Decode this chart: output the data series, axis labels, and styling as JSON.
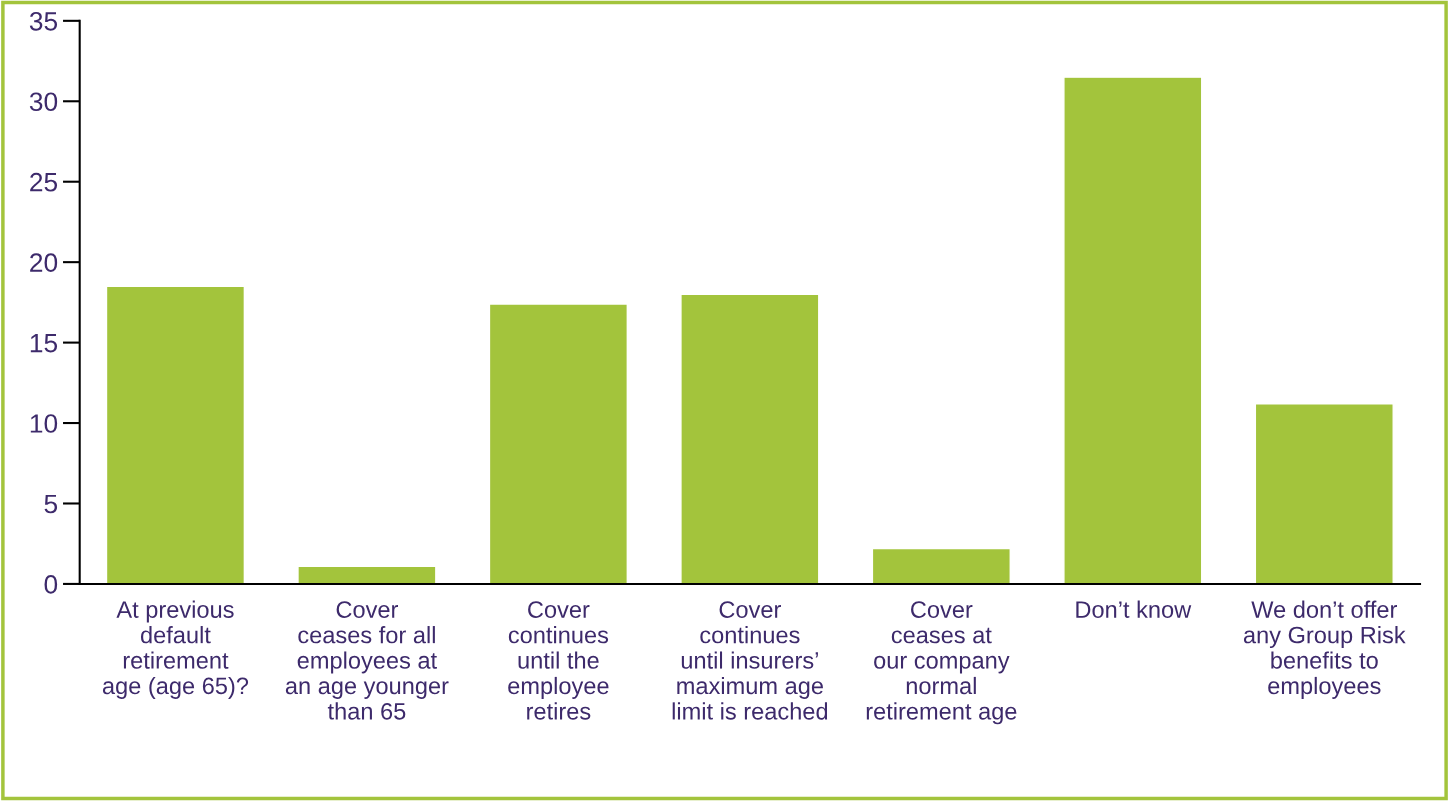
{
  "chart_data": {
    "type": "bar",
    "categories": [
      "At previous\ndefault\nretirement\nage (age 65)?",
      "Cover\nceases for all\nemployees at\nan age younger\nthan 65",
      "Cover\ncontinues\nuntil the\nemployee\nretires",
      "Cover\ncontinues\nuntil insurers’\nmaximum age\nlimit is reached",
      "Cover\nceases at\nour company\nnormal\nretirement age",
      "Don’t know",
      "We don’t offer\nany Group Risk\nbenefits to\nemployees"
    ],
    "values": [
      18.5,
      1.1,
      17.4,
      18.0,
      2.2,
      31.5,
      11.2
    ],
    "color": "#a3c43c",
    "ylim": [
      0,
      35
    ],
    "yticks": [
      0,
      5,
      10,
      15,
      20,
      25,
      30,
      35
    ],
    "grid": false
  }
}
